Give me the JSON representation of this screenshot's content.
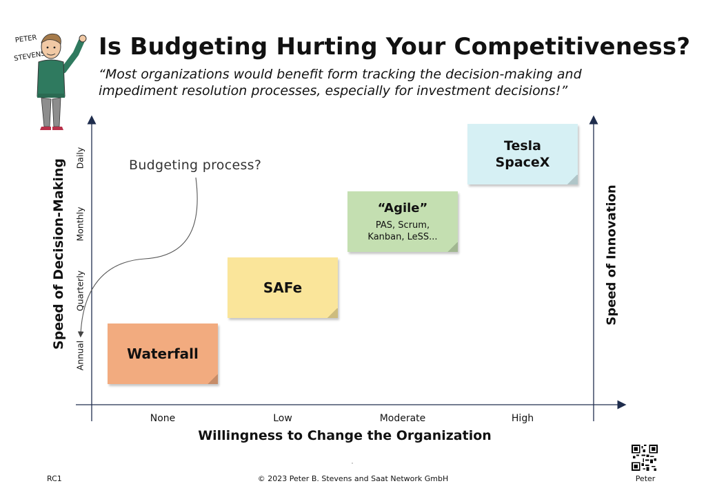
{
  "header": {
    "title": "Is Budgeting Hurting Your Competitiveness?",
    "quote": "“Most organizations would benefit form tracking the decision-making and impediment resolution processes, especially for investment decisions!”"
  },
  "avatar": {
    "name_line1": "PETER",
    "name_line2": "STEVENS"
  },
  "diagram": {
    "y_axis_label": "Speed of Decision-Making",
    "y_axis_right_label": "Speed of Innovation",
    "x_axis_label": "Willingness to Change the Organization",
    "y_ticks": [
      "Annual",
      "Quarterly",
      "Monthly",
      "Daily"
    ],
    "x_ticks": [
      "None",
      "Low",
      "Moderate",
      "High"
    ],
    "annotation": "Budgeting process?",
    "notes": [
      {
        "id": "waterfall",
        "title": "Waterfall",
        "color": "#f2ab7f"
      },
      {
        "id": "safe",
        "title": "SAFe",
        "color": "#fae59a"
      },
      {
        "id": "agile",
        "title": "“Agile”",
        "subtitle": "PAS, Scrum, Kanban, LeSS...",
        "color": "#c4dfb1"
      },
      {
        "id": "tesla",
        "title_line1": "Tesla",
        "title_line2": "SpaceX",
        "color": "#d6f0f4"
      }
    ]
  },
  "footer": {
    "left": "RC1",
    "center": "© 2023 Peter B. Stevens and Saat Network GmbH",
    "right": "Peter"
  }
}
